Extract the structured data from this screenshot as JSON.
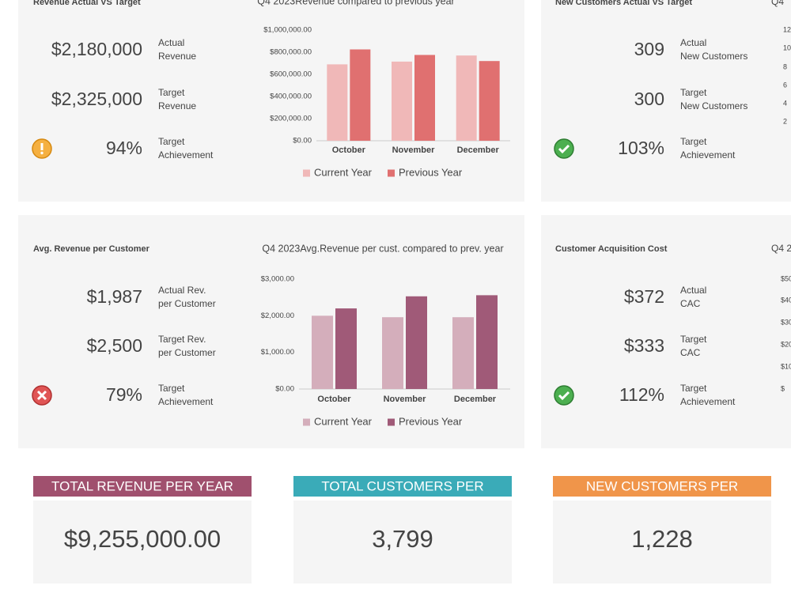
{
  "panels": [
    {
      "title": "Revenue Actual VS Target",
      "kpis": [
        {
          "value": "$2,180,000",
          "label": [
            "Actual",
            "Revenue"
          ]
        },
        {
          "value": "$2,325,000",
          "label": [
            "Target",
            "Revenue"
          ]
        },
        {
          "value": "94%",
          "label": [
            "Target",
            "Achievement"
          ]
        }
      ]
    },
    {
      "title": "New Customers Actual VS Target",
      "chart_title": "Q4",
      "axis_fragments": [
        "12",
        "10",
        "8",
        "6",
        "4",
        "2"
      ],
      "kpis": [
        {
          "value": "309",
          "label": [
            "Actual",
            "New Customers"
          ]
        },
        {
          "value": "300",
          "label": [
            "Target",
            "New Customers"
          ]
        },
        {
          "value": "103%",
          "label": [
            "Target",
            "Achievement"
          ]
        }
      ]
    },
    {
      "title": "Avg. Revenue per Customer",
      "kpis": [
        {
          "value": "$1,987",
          "label": [
            "Actual Rev.",
            "per Customer"
          ]
        },
        {
          "value": "$2,500",
          "label": [
            "Target Rev.",
            "per Customer"
          ]
        },
        {
          "value": "79%",
          "label": [
            "Target",
            "Achievement"
          ]
        }
      ]
    },
    {
      "title": "Customer Acquisition Cost",
      "chart_title": "Q4 2",
      "axis_fragments": [
        "$50",
        "$40",
        "$30",
        "$20",
        "$10",
        "$"
      ],
      "kpis": [
        {
          "value": "$372",
          "label": [
            "Actual",
            "CAC"
          ]
        },
        {
          "value": "$333",
          "label": [
            "Target",
            "CAC"
          ]
        },
        {
          "value": "112%",
          "label": [
            "Target",
            "Achievement"
          ]
        }
      ]
    }
  ],
  "chart_data": [
    {
      "type": "bar",
      "title": "Q4 2023Revenue compared to previous year",
      "categories": [
        "October",
        "November",
        "December"
      ],
      "series": [
        {
          "name": "Current Year",
          "color": "#f0b8b8",
          "values": [
            690000,
            715000,
            770000
          ]
        },
        {
          "name": "Previous Year",
          "color": "#e07070",
          "values": [
            825000,
            775000,
            720000
          ]
        }
      ],
      "ylim": [
        0,
        1000000
      ],
      "yticks": [
        {
          "value": 0,
          "label": "$0.00"
        },
        {
          "value": 200000,
          "label": "$200,000.00"
        },
        {
          "value": 400000,
          "label": "$400,000.00"
        },
        {
          "value": 600000,
          "label": "$600,000.00"
        },
        {
          "value": 800000,
          "label": "$800,000.00"
        },
        {
          "value": 1000000,
          "label": "$1,000,000.00"
        }
      ],
      "legend": "bottom"
    },
    {
      "type": "bar",
      "title": "Q4 2023Avg.Revenue per cust. compared to prev. year",
      "categories": [
        "October",
        "November",
        "December"
      ],
      "series": [
        {
          "name": "Current Year",
          "color": "#d4aebb",
          "values": [
            2000,
            1960,
            1960
          ]
        },
        {
          "name": "Previous Year",
          "color": "#a05a78",
          "values": [
            2200,
            2530,
            2560
          ]
        }
      ],
      "ylim": [
        0,
        3000
      ],
      "yticks": [
        {
          "value": 0,
          "label": "$0.00"
        },
        {
          "value": 1000,
          "label": "$1,000.00"
        },
        {
          "value": 2000,
          "label": "$2,000.00"
        },
        {
          "value": 3000,
          "label": "$3,000.00"
        }
      ],
      "legend": "bottom"
    }
  ],
  "totals": [
    {
      "title": "TOTAL REVENUE PER YEAR",
      "value": "$9,255,000.00",
      "color": "#a0506e"
    },
    {
      "title": "TOTAL CUSTOMERS PER",
      "value": "3,799",
      "color": "#3aabb8"
    },
    {
      "title": "NEW CUSTOMERS PER",
      "value": "1,228",
      "color": "#f0954a"
    }
  ]
}
